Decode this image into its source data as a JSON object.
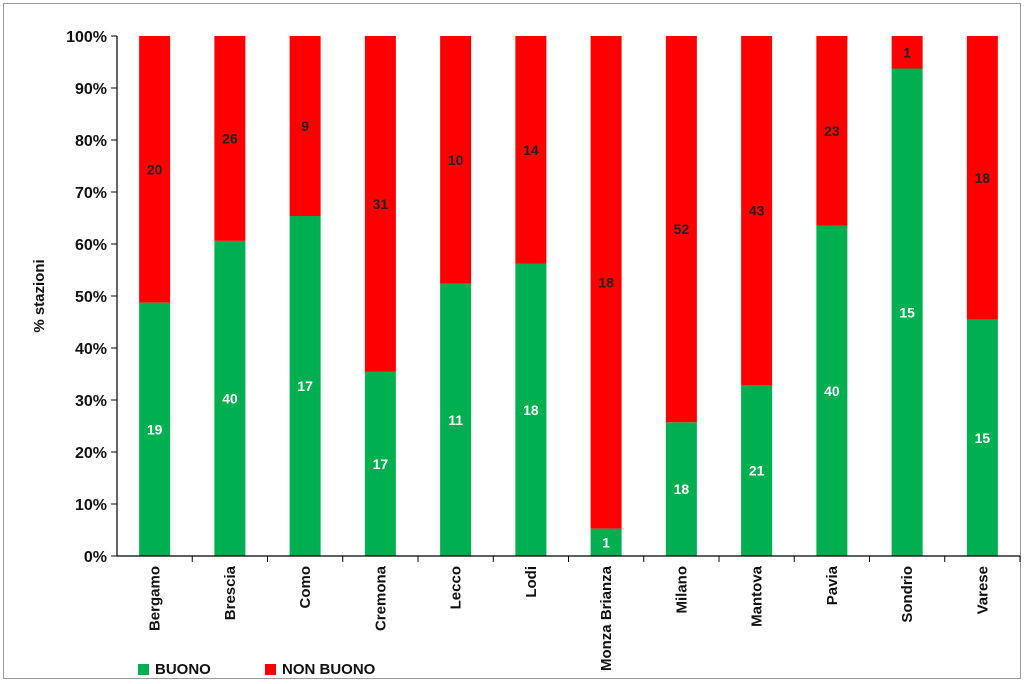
{
  "chart_data": {
    "type": "bar",
    "stacked": true,
    "normalized_percent": true,
    "ylabel": "% stazioni",
    "xlabel": "",
    "ylim": [
      0,
      100
    ],
    "yticks": [
      "0%",
      "10%",
      "20%",
      "30%",
      "40%",
      "50%",
      "60%",
      "70%",
      "80%",
      "90%",
      "100%"
    ],
    "grid": false,
    "legend_position": "bottom-left",
    "categories": [
      "Bergamo",
      "Brescia",
      "Como",
      "Cremona",
      "Lecco",
      "Lodi",
      "Monza Brianza",
      "Milano",
      "Mantova",
      "Pavia",
      "Sondrio",
      "Varese"
    ],
    "series": [
      {
        "name": "BUONO",
        "color": "#00b050",
        "values": [
          19,
          40,
          17,
          17,
          11,
          18,
          1,
          18,
          21,
          40,
          15,
          15
        ]
      },
      {
        "name": "NON BUONO",
        "color": "#ff0000",
        "values": [
          20,
          26,
          9,
          31,
          10,
          14,
          18,
          52,
          43,
          23,
          1,
          18
        ]
      }
    ]
  }
}
